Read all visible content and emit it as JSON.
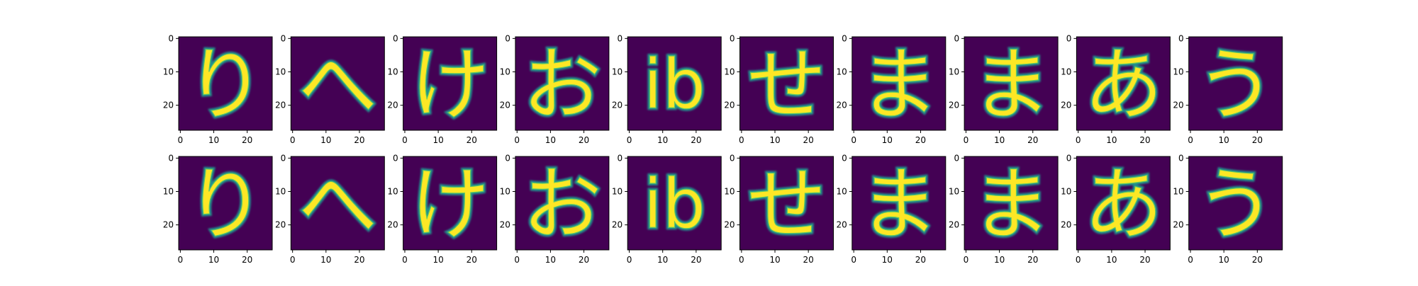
{
  "chart_data": {
    "type": "heatmap",
    "colormap": "viridis",
    "image_size": [
      28,
      28
    ],
    "xlim": [
      0,
      28
    ],
    "ylim": [
      28,
      0
    ],
    "xticks": [
      0,
      10,
      20
    ],
    "yticks": [
      0,
      10,
      20
    ],
    "grid": false,
    "legend": "none",
    "rows": [
      {
        "row": "top",
        "glyphs": [
          "り",
          "へ",
          "け",
          "お",
          "ib",
          "せ",
          "ま",
          "ま",
          "あ",
          "う"
        ]
      },
      {
        "row": "bottom",
        "glyphs": [
          "り",
          "へ",
          "け",
          "お",
          "ib",
          "せ",
          "ま",
          "ま",
          "あ",
          "う"
        ]
      }
    ],
    "colors": {
      "background": "#440154",
      "mid": "#21918c",
      "stroke": "#fde725",
      "edge": "#5ec962"
    }
  }
}
